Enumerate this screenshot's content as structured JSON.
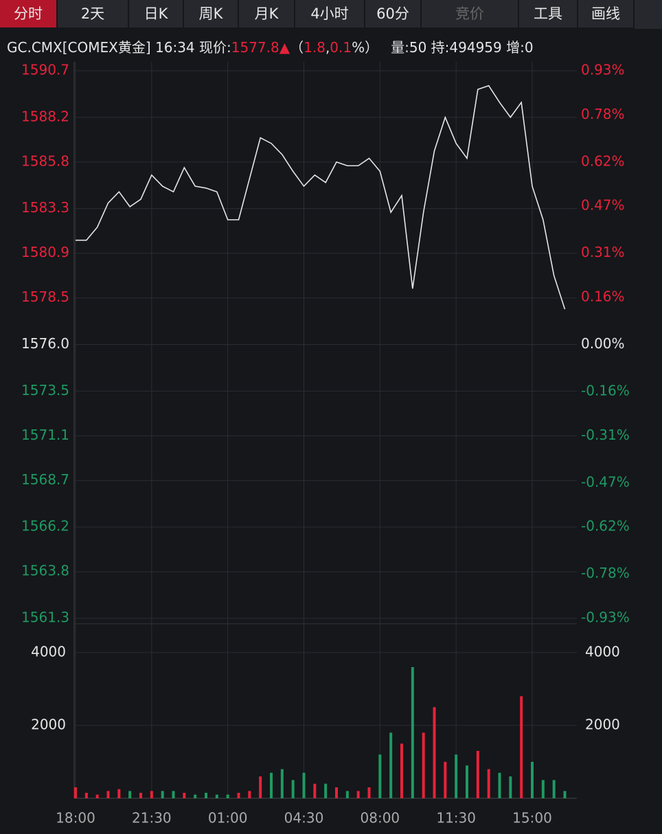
{
  "toolbar": [
    "分时",
    "2天",
    "日K",
    "周K",
    "月K",
    "4小时",
    "60分",
    "竞价",
    "工具",
    "画线"
  ],
  "quote": {
    "symbol": "GC.CMX[COMEX黄金] 16:34 现价:",
    "price": "1577.8",
    "open": "（",
    "change": "1.8",
    "sep": ",",
    "pct": "0.1",
    "close": "%）",
    "stats": "量:50 持:494959 增:0"
  },
  "chart_data": [
    {
      "type": "line",
      "color": "#e6e6e6",
      "up_color": "#e8223a",
      "down_color": "#1f9a62",
      "x": [
        "18:00",
        "18:30",
        "19:00",
        "19:30",
        "20:00",
        "20:30",
        "21:00",
        "21:30",
        "22:00",
        "22:30",
        "23:00",
        "23:30",
        "00:00",
        "00:30",
        "01:00",
        "01:30",
        "02:00",
        "02:30",
        "03:00",
        "03:30",
        "04:00",
        "04:30",
        "05:00",
        "05:30",
        "06:00",
        "06:30",
        "07:00",
        "07:30",
        "08:00",
        "08:30",
        "09:00",
        "09:30",
        "10:00",
        "10:30",
        "11:00",
        "11:30",
        "12:00",
        "12:30",
        "13:00",
        "13:30",
        "14:00",
        "14:30",
        "15:00",
        "15:30",
        "16:00",
        "16:30"
      ],
      "values": [
        1581.6,
        1581.6,
        1582.3,
        1583.6,
        1584.2,
        1583.4,
        1583.8,
        1585.1,
        1584.5,
        1584.2,
        1585.5,
        1584.5,
        1584.4,
        1584.2,
        1582.7,
        1582.7,
        1584.9,
        1587.1,
        1586.8,
        1586.2,
        1585.3,
        1584.5,
        1585.1,
        1584.7,
        1585.8,
        1585.6,
        1585.6,
        1586.0,
        1585.3,
        1583.1,
        1584.0,
        1579.0,
        1583.1,
        1586.4,
        1588.2,
        1586.8,
        1586.0,
        1589.7,
        1589.9,
        1589.0,
        1588.2,
        1589.0,
        1584.5,
        1582.7,
        1579.7,
        1577.9
      ],
      "ylim": [
        1561.3,
        1590.7
      ],
      "yticks": [
        1590.7,
        1588.2,
        1585.8,
        1583.3,
        1580.9,
        1578.5,
        {
          "value": 1576.0,
          "label": "1576.0"
        },
        1573.5,
        1571.1,
        1568.7,
        1566.2,
        1563.8,
        1561.3
      ],
      "y2lim": [
        -0.93,
        0.93
      ],
      "y2ticks": [
        {
          "value": 0.93,
          "label": "0.93%"
        },
        {
          "value": 0.78,
          "label": "0.78%"
        },
        {
          "value": 0.62,
          "label": "0.62%"
        },
        {
          "value": 0.47,
          "label": "0.47%"
        },
        {
          "value": 0.31,
          "label": "0.31%"
        },
        {
          "value": 0.16,
          "label": "0.16%"
        },
        {
          "value": 0,
          "label": "0.00%"
        },
        {
          "value": -0.16,
          "label": "-0.16%"
        },
        {
          "value": -0.31,
          "label": "-0.31%"
        },
        {
          "value": -0.47,
          "label": "-0.47%"
        },
        {
          "value": -0.62,
          "label": "-0.62%"
        },
        {
          "value": -0.78,
          "label": "-0.78%"
        },
        {
          "value": -0.93,
          "label": "-0.93%"
        }
      ],
      "grid": true
    },
    {
      "type": "bar",
      "values": [
        300,
        150,
        100,
        200,
        250,
        200,
        150,
        200,
        200,
        200,
        150,
        100,
        150,
        100,
        100,
        150,
        200,
        600,
        700,
        800,
        500,
        700,
        400,
        400,
        300,
        200,
        200,
        300,
        1200,
        1800,
        1500,
        3600,
        1800,
        2500,
        1000,
        1200,
        900,
        1300,
        800,
        700,
        600,
        2800,
        1000,
        500,
        500,
        200
      ],
      "ylim": [
        0,
        4750
      ],
      "yticks": [
        2000,
        4000
      ],
      "xticks": [
        "18:00",
        "21:30",
        "01:00",
        "04:30",
        "08:00",
        "11:30",
        "15:00"
      ]
    }
  ]
}
